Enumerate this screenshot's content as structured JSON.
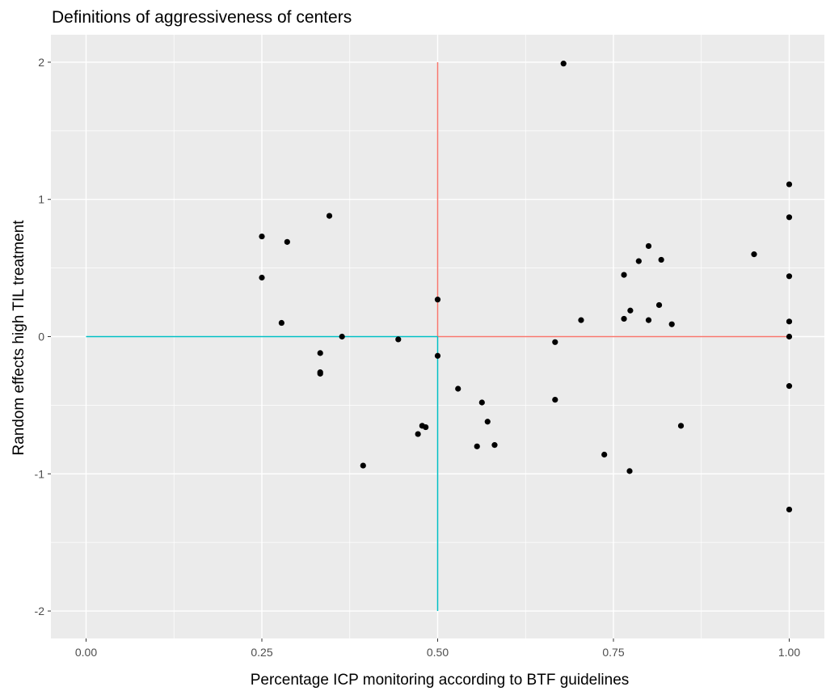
{
  "chart_data": {
    "type": "scatter",
    "title": "Definitions of aggressiveness of centers",
    "xlabel": "Percentage ICP monitoring according to BTF guidelines",
    "ylabel": "Random effects high TIL treatment",
    "xlim": [
      -0.05,
      1.05
    ],
    "ylim": [
      -2.2,
      2.2
    ],
    "x_ticks": [
      0.0,
      0.25,
      0.5,
      0.75,
      1.0
    ],
    "x_tick_labels": [
      "0.00",
      "0.25",
      "0.50",
      "0.75",
      "1.00"
    ],
    "y_ticks": [
      -2,
      -1,
      0,
      1,
      2
    ],
    "y_tick_labels": [
      "-2",
      "-1",
      "0",
      "1",
      "2"
    ],
    "grid": true,
    "legend": "none",
    "colors": {
      "panel": "#ebebeb",
      "grid": "#ffffff",
      "points": "#000000",
      "reference_high": "#f8766d",
      "reference_low": "#00bfc4"
    },
    "reference_lines": [
      {
        "color": "reference_high",
        "from": [
          0.5,
          2.0
        ],
        "to": [
          0.5,
          0.0
        ]
      },
      {
        "color": "reference_high",
        "from": [
          0.5,
          0.0
        ],
        "to": [
          1.0,
          0.0
        ]
      },
      {
        "color": "reference_low",
        "from": [
          0.0,
          0.0
        ],
        "to": [
          0.5,
          0.0
        ]
      },
      {
        "color": "reference_low",
        "from": [
          0.5,
          0.0
        ],
        "to": [
          0.5,
          -2.0
        ]
      }
    ],
    "points": [
      {
        "x": 0.25,
        "y": 0.73
      },
      {
        "x": 0.25,
        "y": 0.43
      },
      {
        "x": 0.286,
        "y": 0.69
      },
      {
        "x": 0.278,
        "y": 0.1
      },
      {
        "x": 0.346,
        "y": 0.88
      },
      {
        "x": 0.333,
        "y": -0.12
      },
      {
        "x": 0.333,
        "y": -0.26
      },
      {
        "x": 0.333,
        "y": -0.27
      },
      {
        "x": 0.364,
        "y": 0.0
      },
      {
        "x": 0.394,
        "y": -0.94
      },
      {
        "x": 0.444,
        "y": -0.02
      },
      {
        "x": 0.472,
        "y": -0.71
      },
      {
        "x": 0.478,
        "y": -0.65
      },
      {
        "x": 0.483,
        "y": -0.66
      },
      {
        "x": 0.5,
        "y": 0.27
      },
      {
        "x": 0.5,
        "y": -0.14
      },
      {
        "x": 0.529,
        "y": -0.38
      },
      {
        "x": 0.556,
        "y": -0.8
      },
      {
        "x": 0.563,
        "y": -0.48
      },
      {
        "x": 0.571,
        "y": -0.62
      },
      {
        "x": 0.581,
        "y": -0.79
      },
      {
        "x": 0.667,
        "y": -0.04
      },
      {
        "x": 0.667,
        "y": -0.46
      },
      {
        "x": 0.679,
        "y": 1.99
      },
      {
        "x": 0.704,
        "y": 0.12
      },
      {
        "x": 0.737,
        "y": -0.86
      },
      {
        "x": 0.765,
        "y": 0.45
      },
      {
        "x": 0.765,
        "y": 0.13
      },
      {
        "x": 0.774,
        "y": 0.19
      },
      {
        "x": 0.773,
        "y": -0.98
      },
      {
        "x": 0.786,
        "y": 0.55
      },
      {
        "x": 0.8,
        "y": 0.66
      },
      {
        "x": 0.8,
        "y": 0.12
      },
      {
        "x": 0.815,
        "y": 0.23
      },
      {
        "x": 0.818,
        "y": 0.56
      },
      {
        "x": 0.833,
        "y": 0.09
      },
      {
        "x": 0.846,
        "y": -0.65
      },
      {
        "x": 0.95,
        "y": 0.6
      },
      {
        "x": 1.0,
        "y": 1.11
      },
      {
        "x": 1.0,
        "y": 0.87
      },
      {
        "x": 1.0,
        "y": 0.44
      },
      {
        "x": 1.0,
        "y": 0.11
      },
      {
        "x": 1.0,
        "y": 0.0
      },
      {
        "x": 1.0,
        "y": -0.36
      },
      {
        "x": 1.0,
        "y": -1.26
      }
    ]
  }
}
